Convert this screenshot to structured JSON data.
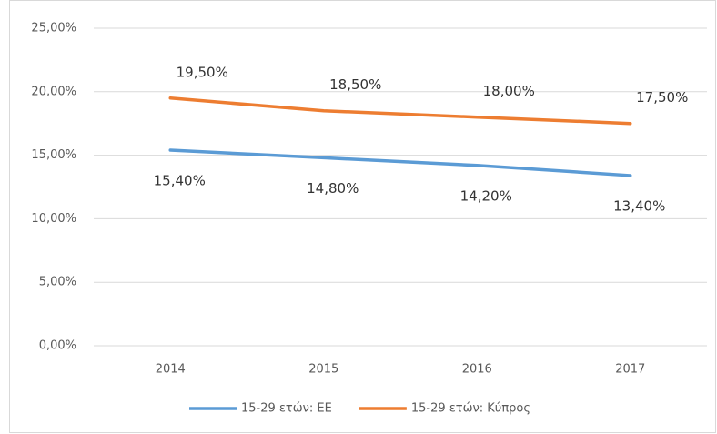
{
  "chart_data": {
    "type": "line",
    "categories": [
      "2014",
      "2015",
      "2016",
      "2017"
    ],
    "series": [
      {
        "name": "15-29 ετών: ΕΕ",
        "color": "#5b9bd5",
        "values": [
          15.4,
          14.8,
          14.2,
          13.4
        ],
        "value_labels": [
          "15,40%",
          "14,80%",
          "14,20%",
          "13,40%"
        ],
        "label_position": "below"
      },
      {
        "name": "15-29 ετών: Κύπρος",
        "color": "#ed7d31",
        "values": [
          19.5,
          18.5,
          18.0,
          17.5
        ],
        "value_labels": [
          "19,50%",
          "18,50%",
          "18,00%",
          "17,50%"
        ],
        "label_position": "above"
      }
    ],
    "ylim": [
      0,
      25
    ],
    "yticks": [
      {
        "value": 0,
        "label": "0,00%"
      },
      {
        "value": 5,
        "label": "5,00%"
      },
      {
        "value": 10,
        "label": "10,00%"
      },
      {
        "value": 15,
        "label": "15,00%"
      },
      {
        "value": 20,
        "label": "20,00%"
      },
      {
        "value": 25,
        "label": "25,00%"
      }
    ],
    "grid": true,
    "legend": "bottom"
  }
}
